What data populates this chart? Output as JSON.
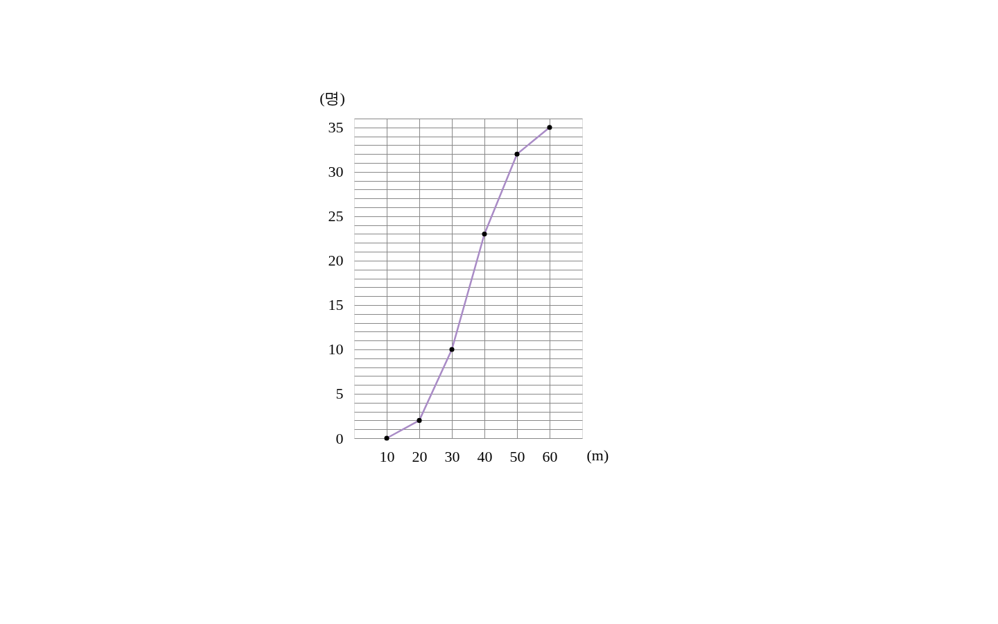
{
  "chart_data": {
    "type": "line",
    "xlabel": "(m)",
    "ylabel": "(명)",
    "x": [
      10,
      20,
      30,
      40,
      50,
      60
    ],
    "series": [
      {
        "color": "#a98bc6",
        "values": [
          0,
          2,
          10,
          23,
          32,
          35
        ]
      }
    ],
    "xlim": [
      0,
      70
    ],
    "xticks": [
      10,
      20,
      30,
      40,
      50,
      60
    ],
    "ylim": [
      0,
      36
    ],
    "yticks": [
      0,
      {
        "value": 1,
        "label": null
      },
      {
        "value": 2,
        "label": null
      },
      {
        "value": 3,
        "label": null
      },
      {
        "value": 4,
        "label": null
      },
      5,
      {
        "value": 6,
        "label": null
      },
      {
        "value": 7,
        "label": null
      },
      {
        "value": 8,
        "label": null
      },
      {
        "value": 9,
        "label": null
      },
      10,
      {
        "value": 11,
        "label": null
      },
      {
        "value": 12,
        "label": null
      },
      {
        "value": 13,
        "label": null
      },
      {
        "value": 14,
        "label": null
      },
      15,
      {
        "value": 16,
        "label": null
      },
      {
        "value": 17,
        "label": null
      },
      {
        "value": 18,
        "label": null
      },
      {
        "value": 19,
        "label": null
      },
      20,
      {
        "value": 21,
        "label": null
      },
      {
        "value": 22,
        "label": null
      },
      {
        "value": 23,
        "label": null
      },
      {
        "value": 24,
        "label": null
      },
      25,
      {
        "value": 26,
        "label": null
      },
      {
        "value": 27,
        "label": null
      },
      {
        "value": 28,
        "label": null
      },
      {
        "value": 29,
        "label": null
      },
      30,
      {
        "value": 31,
        "label": null
      },
      {
        "value": 32,
        "label": null
      },
      {
        "value": 33,
        "label": null
      },
      {
        "value": 34,
        "label": null
      },
      35,
      {
        "value": 36,
        "label": null
      }
    ],
    "grid": true,
    "marker": "circle",
    "line_style": "solid"
  }
}
